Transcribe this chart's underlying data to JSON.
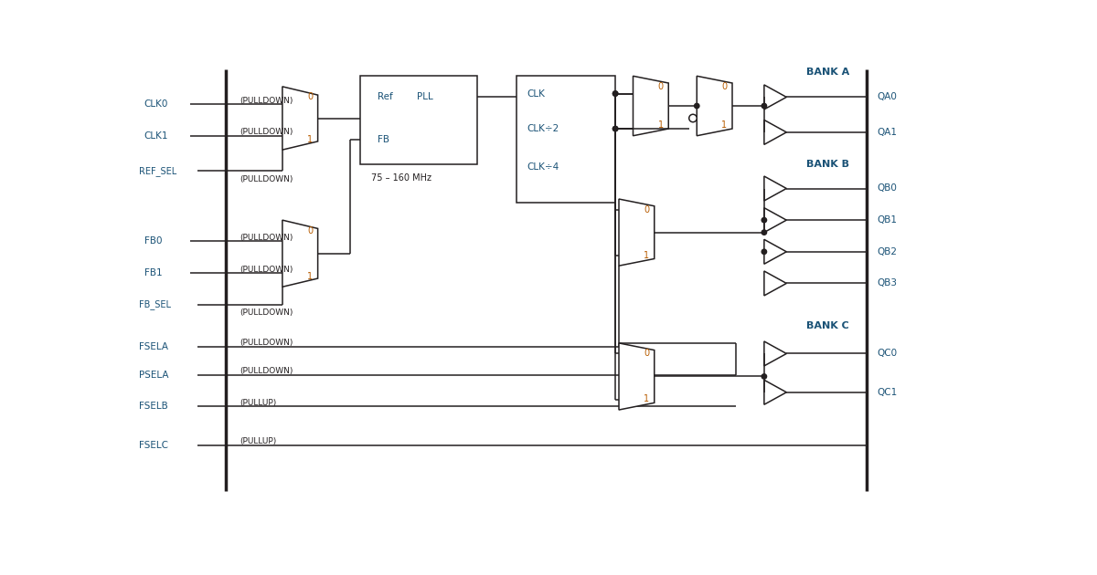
{
  "bg_color": "#ffffff",
  "line_color": "#231f20",
  "blue_color": "#1a5276",
  "orange_color": "#b85c00",
  "fig_width": 12.0,
  "fig_height": 6.3,
  "xlim": [
    0,
    120
  ],
  "ylim": [
    0,
    63
  ]
}
